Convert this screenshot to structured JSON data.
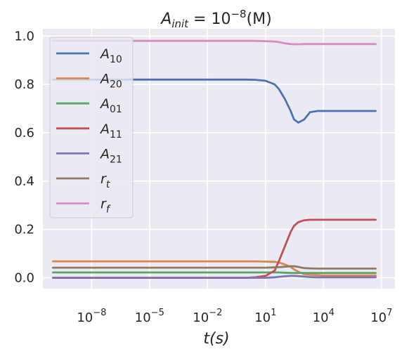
{
  "chart_data": {
    "type": "line",
    "title": {
      "base": "A",
      "sub": "init",
      "eq": " = 10",
      "sup": "−8",
      "tail": "(M)"
    },
    "xlabel": {
      "text": "t(s)"
    },
    "x_scale": "log",
    "xlim": [
      3e-11,
      50000000.0
    ],
    "ylim": [
      -0.045,
      1.03
    ],
    "grid": true,
    "legend_position": "upper-left",
    "x_ticks": [
      {
        "value": 1e-08,
        "base": "10",
        "exp": "−8"
      },
      {
        "value": 1e-05,
        "base": "10",
        "exp": "−5"
      },
      {
        "value": 0.01,
        "base": "10",
        "exp": "−2"
      },
      {
        "value": 10,
        "base": "10",
        "exp": "1"
      },
      {
        "value": 10000,
        "base": "10",
        "exp": "4"
      },
      {
        "value": 10000000,
        "base": "10",
        "exp": "7"
      }
    ],
    "y_ticks": [
      {
        "value": 0.0,
        "label": "0.0"
      },
      {
        "value": 0.2,
        "label": "0.2"
      },
      {
        "value": 0.4,
        "label": "0.4"
      },
      {
        "value": 0.6,
        "label": "0.6"
      },
      {
        "value": 0.8,
        "label": "0.8"
      },
      {
        "value": 1.0,
        "label": "1.0"
      }
    ],
    "x": [
      1e-10,
      1e-08,
      1e-06,
      0.0001,
      0.01,
      1,
      3,
      10,
      30,
      50,
      100,
      200,
      300,
      500,
      1000,
      2000,
      5000,
      10000,
      100000,
      1000000,
      5000000
    ],
    "series": [
      {
        "name_base": "A",
        "name_sub": "10",
        "color": "#4c72b0",
        "values": [
          0.82,
          0.82,
          0.82,
          0.82,
          0.82,
          0.82,
          0.819,
          0.815,
          0.8,
          0.78,
          0.74,
          0.69,
          0.655,
          0.642,
          0.655,
          0.685,
          0.69,
          0.69,
          0.69,
          0.69,
          0.69
        ]
      },
      {
        "name_base": "A",
        "name_sub": "20",
        "color": "#dd8452",
        "values": [
          0.068,
          0.068,
          0.068,
          0.068,
          0.068,
          0.068,
          0.068,
          0.067,
          0.066,
          0.063,
          0.055,
          0.045,
          0.035,
          0.025,
          0.015,
          0.012,
          0.011,
          0.01,
          0.01,
          0.01,
          0.01
        ]
      },
      {
        "name_base": "A",
        "name_sub": "01",
        "color": "#55a868",
        "values": [
          0.022,
          0.022,
          0.022,
          0.022,
          0.022,
          0.022,
          0.022,
          0.022,
          0.022,
          0.022,
          0.021,
          0.02,
          0.02,
          0.02,
          0.02,
          0.02,
          0.02,
          0.02,
          0.02,
          0.02,
          0.02
        ]
      },
      {
        "name_base": "A",
        "name_sub": "11",
        "color": "#c44e52",
        "values": [
          0.0,
          0.0,
          0.0,
          0.0,
          0.0,
          0.0,
          0.002,
          0.008,
          0.03,
          0.07,
          0.13,
          0.19,
          0.215,
          0.23,
          0.238,
          0.24,
          0.24,
          0.24,
          0.24,
          0.24,
          0.24
        ]
      },
      {
        "name_base": "A",
        "name_sub": "21",
        "color": "#8172b3",
        "values": [
          0.0,
          0.0,
          0.0,
          0.0,
          0.0,
          0.0,
          0.0,
          0.0,
          0.002,
          0.004,
          0.006,
          0.008,
          0.008,
          0.007,
          0.005,
          0.003,
          0.002,
          0.002,
          0.002,
          0.002,
          0.002
        ]
      },
      {
        "name_base": "r",
        "name_sub": "t",
        "color": "#937860",
        "values": [
          0.042,
          0.042,
          0.042,
          0.042,
          0.042,
          0.042,
          0.042,
          0.042,
          0.043,
          0.044,
          0.046,
          0.048,
          0.048,
          0.045,
          0.04,
          0.039,
          0.038,
          0.038,
          0.038,
          0.038,
          0.038
        ]
      },
      {
        "name_base": "r",
        "name_sub": "f",
        "color": "#da8bc3",
        "values": [
          0.98,
          0.98,
          0.98,
          0.98,
          0.98,
          0.98,
          0.98,
          0.979,
          0.977,
          0.975,
          0.97,
          0.967,
          0.966,
          0.966,
          0.967,
          0.967,
          0.967,
          0.967,
          0.967,
          0.967,
          0.967
        ]
      }
    ]
  }
}
